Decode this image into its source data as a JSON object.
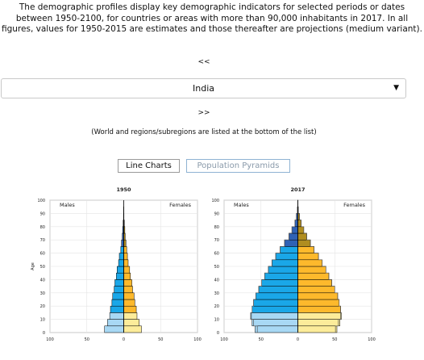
{
  "intro_text": "The demographic profiles display key demographic indicators for selected periods or dates between 1950-2100, for countries or areas with more than 90,000 inhabitants in 2017. In all figures, values for 1950-2015 are estimates and those thereafter are projections (medium variant).",
  "nav": {
    "prev_label": "<<",
    "next_label": ">>"
  },
  "country_select": {
    "value": "India",
    "caret": "▼"
  },
  "note": "(World and regions/subregions are listed at the bottom of the list)",
  "tabs": {
    "line_charts": "Line Charts",
    "population_pyramids": "Population Pyramids",
    "active": "population_pyramids"
  },
  "colors": {
    "male_child": "#a8d8f4",
    "male_working": "#1aa7e8",
    "male_old": "#2f62b5",
    "female_child": "#fcec9a",
    "female_working": "#fdb92c",
    "female_old": "#b08d20",
    "proj_outline": "#555555"
  },
  "chart_data": [
    {
      "type": "bar",
      "title": "1950",
      "ylabel": "Age",
      "left_label": "Males",
      "right_label": "Females",
      "x_ticks": [
        "100",
        "50",
        "0",
        "50",
        "100"
      ],
      "y_ticks": [
        "0",
        "10",
        "20",
        "30",
        "40",
        "50",
        "60",
        "70",
        "80",
        "90",
        "100"
      ],
      "xlim": [
        -100,
        100
      ],
      "ylim": [
        0,
        100
      ],
      "age_groups_start": [
        0,
        5,
        10,
        15,
        20,
        25,
        30,
        35,
        40,
        45,
        50,
        55,
        60,
        65,
        70,
        75,
        80,
        85,
        90,
        95,
        100
      ],
      "series": [
        {
          "name": "Males",
          "values": [
            26,
            22,
            19,
            18,
            16,
            15,
            13,
            12,
            10,
            9,
            7,
            6,
            4,
            3,
            2,
            1.5,
            0.8,
            0.3,
            0.1,
            0,
            0
          ]
        },
        {
          "name": "Females",
          "values": [
            24,
            21,
            18,
            17,
            15,
            14,
            12,
            11,
            9,
            8,
            6,
            5,
            4,
            3,
            2,
            1.5,
            0.8,
            0.3,
            0.1,
            0,
            0
          ]
        }
      ]
    },
    {
      "type": "bar",
      "title": "2017",
      "ylabel": "",
      "left_label": "Males",
      "right_label": "Females",
      "x_ticks": [
        "100",
        "50",
        "0",
        "50",
        "100"
      ],
      "y_ticks": [
        "0",
        "10",
        "20",
        "30",
        "40",
        "50",
        "60",
        "70",
        "80",
        "90",
        "100"
      ],
      "xlim": [
        -100,
        100
      ],
      "ylim": [
        0,
        100
      ],
      "age_groups_start": [
        0,
        5,
        10,
        15,
        20,
        25,
        30,
        35,
        40,
        45,
        50,
        55,
        60,
        65,
        70,
        75,
        80,
        85,
        90,
        95,
        100
      ],
      "series": [
        {
          "name": "Males",
          "values": [
            58,
            62,
            64,
            62,
            60,
            57,
            53,
            49,
            45,
            40,
            35,
            30,
            24,
            18,
            12,
            8,
            4,
            2,
            0.6,
            0.1,
            0
          ]
        },
        {
          "name": "Females",
          "values": [
            53,
            57,
            59,
            58,
            56,
            54,
            50,
            46,
            42,
            38,
            33,
            28,
            22,
            17,
            12,
            8,
            4.5,
            2.2,
            0.7,
            0.1,
            0
          ]
        }
      ],
      "projection_outline": {
        "males": [
          55,
          60,
          63,
          62,
          60,
          57,
          53,
          49,
          45,
          40,
          35,
          30,
          24,
          18,
          12,
          8,
          4,
          2,
          0.6,
          0.1,
          0
        ],
        "females": [
          51,
          55,
          58,
          58,
          56,
          54,
          50,
          46,
          42,
          38,
          33,
          28,
          22,
          17,
          12,
          8,
          4.5,
          2.2,
          0.7,
          0.1,
          0
        ]
      }
    }
  ]
}
